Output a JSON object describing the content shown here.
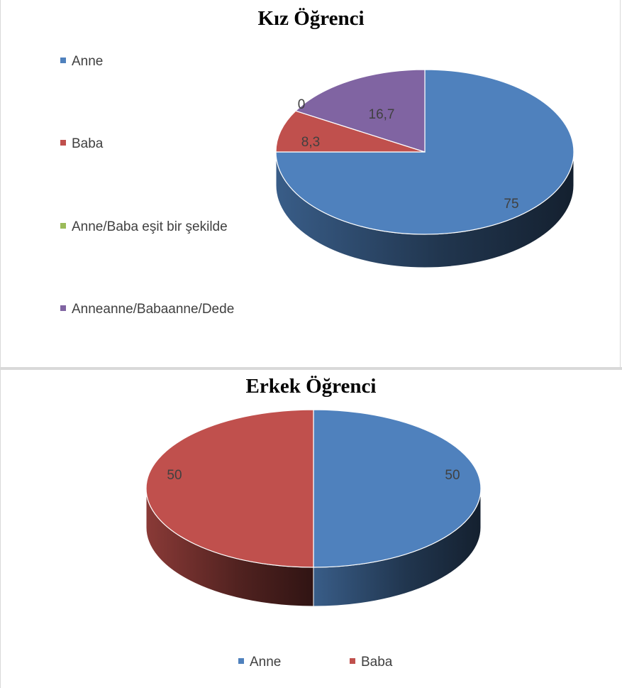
{
  "chart_data": [
    {
      "type": "pie",
      "title": "Kız Öğrenci",
      "categories": [
        "Anne",
        "Baba",
        "Anne/Baba eşit bir şekilde",
        "Anneanne/Babaanne/Dede"
      ],
      "values": [
        75,
        8.3,
        0,
        16.7
      ],
      "data_labels": [
        "75",
        "8,3",
        "0",
        "16,7"
      ],
      "colors": [
        "#4f81bd",
        "#c0504d",
        "#9bbb59",
        "#8064a2"
      ],
      "legend_placement": "left",
      "style": "3d"
    },
    {
      "type": "pie",
      "title": "Erkek Öğrenci",
      "categories": [
        "Anne",
        "Baba"
      ],
      "values": [
        50,
        50
      ],
      "data_labels": [
        "50",
        "50"
      ],
      "colors": [
        "#4f81bd",
        "#c0504d"
      ],
      "legend_placement": "bottom",
      "style": "3d"
    }
  ]
}
